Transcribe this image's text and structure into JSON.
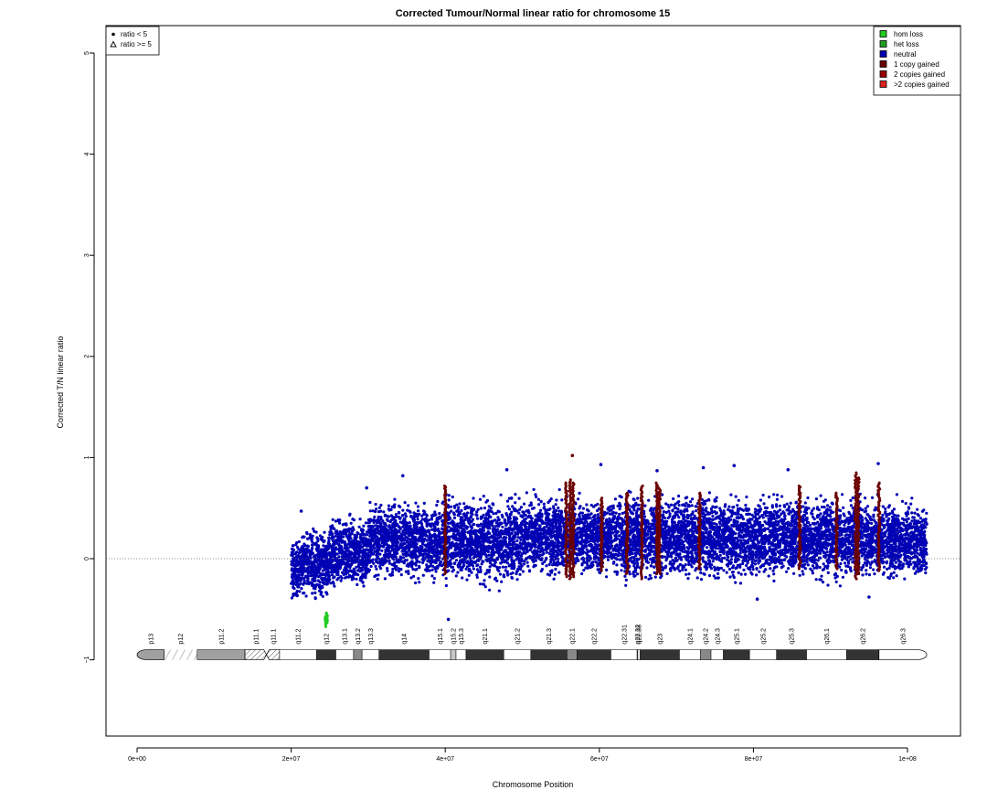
{
  "chart_data": {
    "type": "scatter",
    "title": "Corrected Tumour/Normal linear ratio for chromosome  15",
    "xlabel": "Chromosome Position",
    "ylabel": "Corrected T/N linear ratio",
    "xlim": [
      -2000000,
      108000000
    ],
    "ylim": [
      -1.8,
      5.25
    ],
    "x_ticks": [
      0,
      20000000,
      40000000,
      60000000,
      80000000,
      100000000
    ],
    "x_tick_labels": [
      "0e+00",
      "2e+07",
      "4e+07",
      "6e+07",
      "8e+07",
      "1e+08"
    ],
    "y_ticks": [
      -1,
      0,
      1,
      2,
      3,
      4,
      5
    ],
    "y_tick_labels": [
      "−1",
      "0",
      "1",
      "2",
      "3",
      "4",
      "5"
    ],
    "reference_line_y": 0,
    "shape_legend": {
      "placement": "top-left",
      "items": [
        {
          "label": "ratio < 5",
          "shape": "dot"
        },
        {
          "label": "ratio >= 5",
          "shape": "triangle"
        }
      ]
    },
    "color_legend": {
      "placement": "top-right",
      "items": [
        {
          "label": "hom loss",
          "color": "#22cc22"
        },
        {
          "label": "het loss",
          "color": "#1f9e1f"
        },
        {
          "label": "neutral",
          "color": "#0000b4"
        },
        {
          "label": "1 copy gained",
          "color": "#6b0000"
        },
        {
          "label": "2 copies gained",
          "color": "#990000"
        },
        {
          "label": ">2 copies gained",
          "color": "#dd2222"
        }
      ]
    },
    "series": [
      {
        "name": "neutral",
        "color": "#0000b4",
        "segments": [
          {
            "x_range": [
              20000000,
              21000000
            ],
            "y_range": [
              -0.48,
              0.25
            ]
          },
          {
            "x_range": [
              21000000,
              25000000
            ],
            "y_range": [
              -0.45,
              0.35
            ]
          },
          {
            "x_range": [
              25000000,
              30000000
            ],
            "y_range": [
              -0.4,
              0.5
            ]
          },
          {
            "x_range": [
              30000000,
              40000000
            ],
            "y_range": [
              -0.3,
              0.65
            ]
          },
          {
            "x_range": [
              40000000,
              50000000
            ],
            "y_range": [
              -0.35,
              0.7
            ]
          },
          {
            "x_range": [
              50000000,
              60000000
            ],
            "y_range": [
              -0.25,
              0.7
            ]
          },
          {
            "x_range": [
              60000000,
              70000000
            ],
            "y_range": [
              -0.3,
              0.72
            ]
          },
          {
            "x_range": [
              70000000,
              82500000
            ],
            "y_range": [
              -0.3,
              0.72
            ]
          },
          {
            "x_range": [
              82500000,
              95000000
            ],
            "y_range": [
              -0.3,
              0.7
            ]
          },
          {
            "x_range": [
              95000000,
              102500000
            ],
            "y_range": [
              -0.28,
              0.65
            ]
          }
        ],
        "outliers": [
          [
            21300000,
            0.47
          ],
          [
            29800000,
            0.7
          ],
          [
            34500000,
            0.82
          ],
          [
            48000000,
            0.88
          ],
          [
            60200000,
            0.93
          ],
          [
            67500000,
            0.87
          ],
          [
            73500000,
            0.9
          ],
          [
            77500000,
            0.92
          ],
          [
            84500000,
            0.88
          ],
          [
            96200000,
            0.94
          ],
          [
            40400000,
            -0.6
          ],
          [
            80500000,
            -0.4
          ],
          [
            95000000,
            -0.38
          ]
        ]
      },
      {
        "name": "1 copy gained",
        "color": "#6b0000",
        "columns": [
          {
            "x": 40000000,
            "y_range": [
              -0.15,
              0.72
            ]
          },
          {
            "x": 55700000,
            "y_range": [
              -0.18,
              0.75
            ]
          },
          {
            "x": 56200000,
            "y_range": [
              -0.2,
              0.78
            ]
          },
          {
            "x": 56600000,
            "y_range": [
              -0.18,
              0.75
            ]
          },
          {
            "x": 60300000,
            "y_range": [
              -0.12,
              0.6
            ]
          },
          {
            "x": 63600000,
            "y_range": [
              -0.15,
              0.65
            ]
          },
          {
            "x": 65500000,
            "y_range": [
              -0.2,
              0.72
            ]
          },
          {
            "x": 67500000,
            "y_range": [
              -0.15,
              0.75
            ]
          },
          {
            "x": 67800000,
            "y_range": [
              -0.15,
              0.7
            ]
          },
          {
            "x": 73000000,
            "y_range": [
              -0.1,
              0.65
            ]
          },
          {
            "x": 86000000,
            "y_range": [
              -0.1,
              0.72
            ]
          },
          {
            "x": 90800000,
            "y_range": [
              -0.1,
              0.65
            ]
          },
          {
            "x": 93300000,
            "y_range": [
              -0.2,
              0.85
            ]
          },
          {
            "x": 93600000,
            "y_range": [
              -0.15,
              0.8
            ]
          },
          {
            "x": 96300000,
            "y_range": [
              -0.12,
              0.75
            ]
          }
        ],
        "outliers": [
          [
            56500000,
            1.02
          ]
        ]
      },
      {
        "name": "hom loss",
        "color": "#22cc22",
        "segments": [
          {
            "x_range": [
              24400000,
              24700000
            ],
            "y_range": [
              -0.7,
              -0.5
            ]
          }
        ]
      }
    ],
    "ideogram": {
      "y": -0.95,
      "bands": [
        {
          "name": "p13",
          "start": 0,
          "end": 3500000,
          "stain": "gvar"
        },
        {
          "name": "p12",
          "start": 3500000,
          "end": 7800000,
          "stain": "stalk"
        },
        {
          "name": "p11.2",
          "start": 7800000,
          "end": 14000000,
          "stain": "gvar"
        },
        {
          "name": "p11.1",
          "start": 14000000,
          "end": 16800000,
          "stain": "acen"
        },
        {
          "name": "q11.1",
          "start": 16800000,
          "end": 18500000,
          "stain": "acen"
        },
        {
          "name": "q11.2",
          "start": 18500000,
          "end": 23300000,
          "stain": "gneg"
        },
        {
          "name": "q12",
          "start": 23300000,
          "end": 25800000,
          "stain": "gpos75"
        },
        {
          "name": "q13.1",
          "start": 25800000,
          "end": 28100000,
          "stain": "gneg"
        },
        {
          "name": "q13.2",
          "start": 28100000,
          "end": 29200000,
          "stain": "gpos50"
        },
        {
          "name": "q13.3",
          "start": 29200000,
          "end": 31400000,
          "stain": "gneg"
        },
        {
          "name": "q14",
          "start": 31400000,
          "end": 37900000,
          "stain": "gpos75"
        },
        {
          "name": "q15.1",
          "start": 37900000,
          "end": 40700000,
          "stain": "gneg"
        },
        {
          "name": "q15.2",
          "start": 40700000,
          "end": 41400000,
          "stain": "gpos25"
        },
        {
          "name": "q15.3",
          "start": 41400000,
          "end": 42700000,
          "stain": "gneg"
        },
        {
          "name": "q21.1",
          "start": 42700000,
          "end": 47600000,
          "stain": "gpos75"
        },
        {
          "name": "q21.2",
          "start": 47600000,
          "end": 51100000,
          "stain": "gneg"
        },
        {
          "name": "q21.3",
          "start": 51100000,
          "end": 55800000,
          "stain": "gpos75"
        },
        {
          "name": "q22.1",
          "start": 55800000,
          "end": 57100000,
          "stain": "gpos50"
        },
        {
          "name": "q22.2",
          "start": 57100000,
          "end": 61500000,
          "stain": "gpos75"
        },
        {
          "name": "q22.31",
          "start": 61500000,
          "end": 64900000,
          "stain": "gneg"
        },
        {
          "name": "q22.32",
          "start": 64900000,
          "end": 65000000,
          "stain": "gpos25"
        },
        {
          "name": "q22.33",
          "start": 65000000,
          "end": 65300000,
          "stain": "gneg"
        },
        {
          "name": "q23",
          "start": 65300000,
          "end": 70400000,
          "stain": "gpos75"
        },
        {
          "name": "q24.1",
          "start": 70400000,
          "end": 73100000,
          "stain": "gneg"
        },
        {
          "name": "q24.2",
          "start": 73100000,
          "end": 74500000,
          "stain": "gpos50"
        },
        {
          "name": "q24.3",
          "start": 74500000,
          "end": 76100000,
          "stain": "gneg"
        },
        {
          "name": "q25.1",
          "start": 76100000,
          "end": 79500000,
          "stain": "gpos75"
        },
        {
          "name": "q25.2",
          "start": 79500000,
          "end": 83000000,
          "stain": "gneg"
        },
        {
          "name": "q25.3",
          "start": 83000000,
          "end": 86900000,
          "stain": "gpos75"
        },
        {
          "name": "q26.1",
          "start": 86900000,
          "end": 92100000,
          "stain": "gneg"
        },
        {
          "name": "q26.2",
          "start": 92100000,
          "end": 96300000,
          "stain": "gpos75"
        },
        {
          "name": "q26.3",
          "start": 96300000,
          "end": 102500000,
          "stain": "gneg"
        }
      ]
    }
  }
}
